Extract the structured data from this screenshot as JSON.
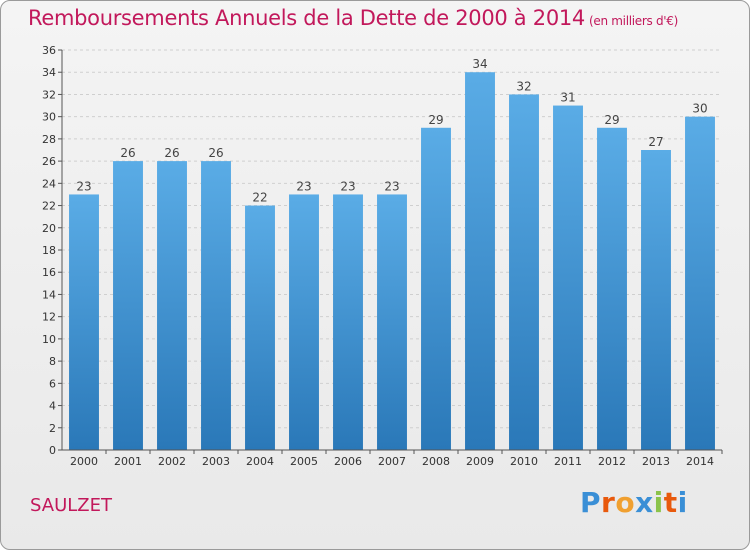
{
  "title": "Remboursements Annuels de la Dette de 2000 à 2014",
  "unit_note": "(en milliers d'€)",
  "commune": "SAULZET",
  "logo_text": "Proxiti",
  "colors": {
    "title": "#c2185b",
    "bar_top": "#5aace6",
    "bar_bottom": "#2a78b8",
    "logo_letters": [
      "#3a8fd6",
      "#e8590c",
      "#f0a030",
      "#3a8fd6",
      "#8bc34a",
      "#e8590c",
      "#3a8fd6"
    ]
  },
  "chart_data": {
    "type": "bar",
    "title": "Remboursements Annuels de la Dette de 2000 à 2014",
    "xlabel": "",
    "ylabel": "",
    "categories": [
      "2000",
      "2001",
      "2002",
      "2003",
      "2004",
      "2005",
      "2006",
      "2007",
      "2008",
      "2009",
      "2010",
      "2011",
      "2012",
      "2013",
      "2014"
    ],
    "values": [
      23,
      26,
      26,
      26,
      22,
      23,
      23,
      23,
      29,
      34,
      32,
      31,
      29,
      27,
      30
    ],
    "ylim": [
      0,
      36
    ],
    "yticks": [
      0,
      2,
      4,
      6,
      8,
      10,
      12,
      14,
      16,
      18,
      20,
      22,
      24,
      26,
      28,
      30,
      32,
      34,
      36
    ],
    "grid": true,
    "data_labels": true
  }
}
